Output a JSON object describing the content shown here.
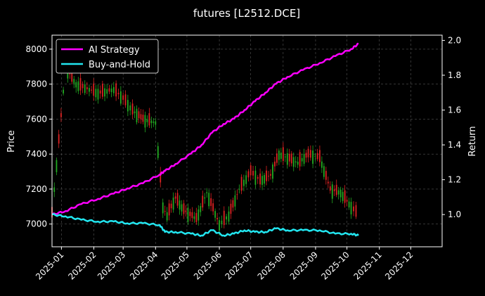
{
  "chart_data": {
    "type": "line",
    "title": "futures [L2512.DCE]",
    "xlabel": "",
    "ylabel_left": "Price",
    "ylabel_right": "Return",
    "x_ticks": [
      "2025-01",
      "2025-02",
      "2025-03",
      "2025-04",
      "2025-05",
      "2025-06",
      "2025-07",
      "2025-08",
      "2025-09",
      "2025-10",
      "2025-11",
      "2025-12"
    ],
    "x_range": [
      "2024-12-23",
      "2025-12-31"
    ],
    "ylim_left": [
      6870,
      8080
    ],
    "ylim_right": [
      0.815,
      2.03
    ],
    "y_ticks_left": [
      7000,
      7200,
      7400,
      7600,
      7800,
      8000
    ],
    "y_ticks_right": [
      "1.0",
      "1.2",
      "1.4",
      "1.6",
      "1.8",
      "2.0"
    ],
    "grid": true,
    "legend_position": "top-left",
    "legend": [
      "AI Strategy",
      "Buy-and-Hold"
    ],
    "series": [
      {
        "name": "AI Strategy",
        "axis": "right",
        "color": "#ff00ff",
        "x": [
          "2024-12-23",
          "2025-01-05",
          "2025-01-20",
          "2025-02-05",
          "2025-02-20",
          "2025-03-05",
          "2025-03-20",
          "2025-04-05",
          "2025-04-10",
          "2025-04-20",
          "2025-05-05",
          "2025-05-15",
          "2025-05-25",
          "2025-06-05",
          "2025-06-15",
          "2025-06-25",
          "2025-07-05",
          "2025-07-15",
          "2025-07-25",
          "2025-08-05",
          "2025-08-20",
          "2025-09-05",
          "2025-09-20",
          "2025-10-05",
          "2025-10-12"
        ],
        "values": [
          1.0,
          1.02,
          1.06,
          1.09,
          1.12,
          1.15,
          1.18,
          1.23,
          1.25,
          1.29,
          1.35,
          1.4,
          1.47,
          1.52,
          1.55,
          1.6,
          1.65,
          1.7,
          1.75,
          1.79,
          1.83,
          1.87,
          1.91,
          1.95,
          1.98
        ]
      },
      {
        "name": "Buy-and-Hold",
        "axis": "right",
        "color": "#22e6f0",
        "x": [
          "2024-12-23",
          "2025-01-05",
          "2025-01-20",
          "2025-02-05",
          "2025-02-20",
          "2025-03-05",
          "2025-03-20",
          "2025-04-05",
          "2025-04-10",
          "2025-04-20",
          "2025-05-05",
          "2025-05-15",
          "2025-05-25",
          "2025-06-05",
          "2025-06-15",
          "2025-06-25",
          "2025-07-05",
          "2025-07-15",
          "2025-07-25",
          "2025-08-05",
          "2025-08-20",
          "2025-09-05",
          "2025-09-20",
          "2025-10-05",
          "2025-10-12"
        ],
        "values": [
          1.0,
          0.99,
          0.97,
          0.96,
          0.96,
          0.95,
          0.95,
          0.94,
          0.9,
          0.9,
          0.89,
          0.88,
          0.91,
          0.88,
          0.89,
          0.91,
          0.9,
          0.9,
          0.92,
          0.91,
          0.91,
          0.91,
          0.89,
          0.89,
          0.88
        ]
      }
    ],
    "candles": {
      "axis": "left",
      "up_color": "#22aa22",
      "down_color": "#dd2222",
      "x": [
        "2024-12-23",
        "2025-01-05",
        "2025-01-15",
        "2025-02-05",
        "2025-02-20",
        "2025-03-01",
        "2025-03-10",
        "2025-03-20",
        "2025-04-01",
        "2025-04-08",
        "2025-04-12",
        "2025-04-20",
        "2025-04-28",
        "2025-05-10",
        "2025-05-20",
        "2025-06-01",
        "2025-06-10",
        "2025-06-20",
        "2025-07-01",
        "2025-07-10",
        "2025-07-20",
        "2025-07-28",
        "2025-08-05",
        "2025-08-15",
        "2025-08-25",
        "2025-09-05",
        "2025-09-15",
        "2025-09-25",
        "2025-10-05",
        "2025-10-12"
      ],
      "close": [
        7060,
        7900,
        7800,
        7750,
        7770,
        7720,
        7650,
        7600,
        7580,
        7100,
        7050,
        7150,
        7080,
        7030,
        7180,
        7000,
        7050,
        7200,
        7300,
        7250,
        7280,
        7400,
        7380,
        7350,
        7400,
        7380,
        7200,
        7180,
        7100,
        7050
      ]
    }
  }
}
